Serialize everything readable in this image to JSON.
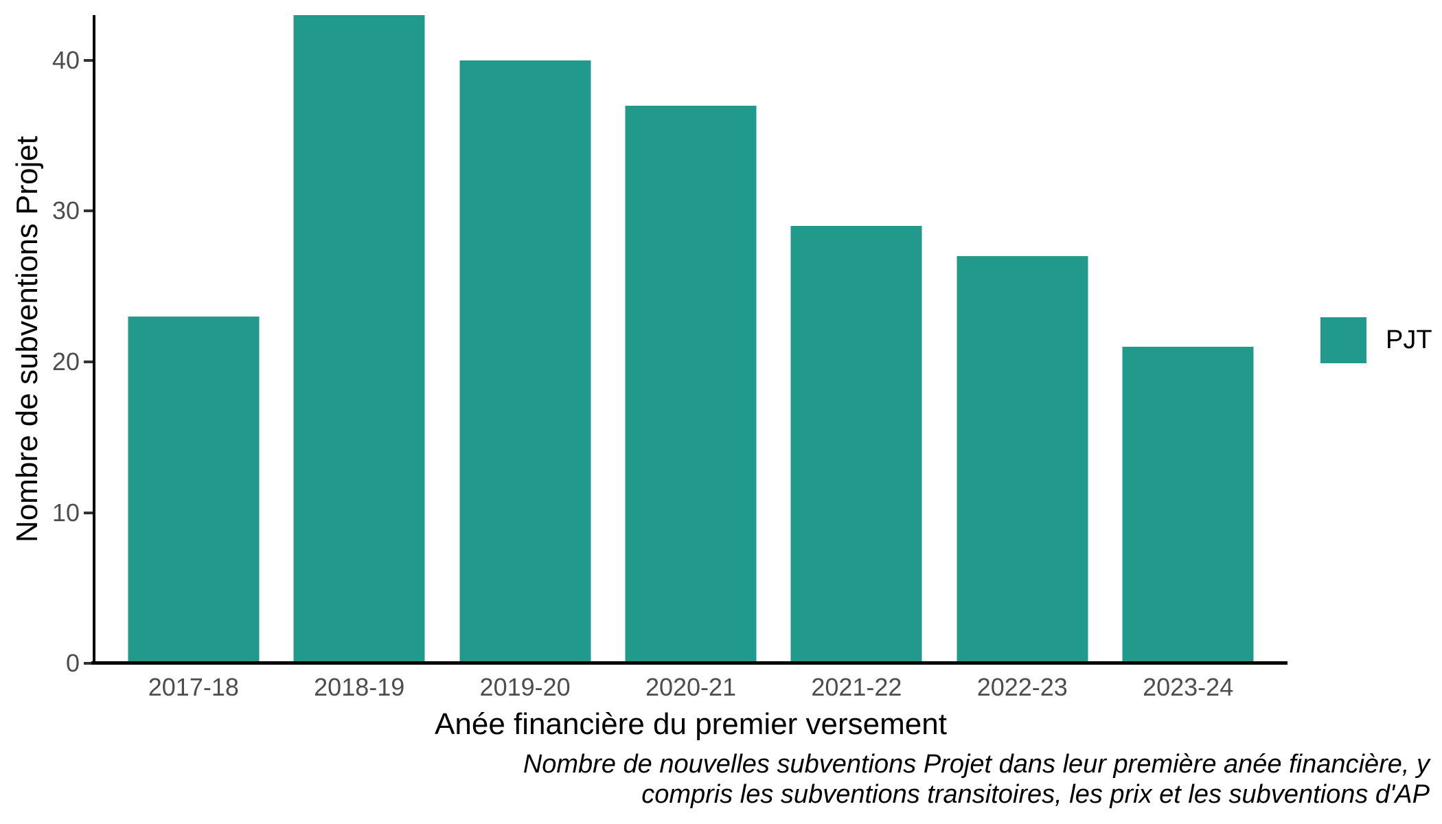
{
  "chart_data": {
    "type": "bar",
    "categories": [
      "2017-18",
      "2018-19",
      "2019-20",
      "2020-21",
      "2021-22",
      "2022-23",
      "2023-24"
    ],
    "values": [
      23,
      43,
      40,
      37,
      29,
      27,
      21
    ],
    "series_name": "PJT",
    "title": "",
    "xlabel": "Anée financière du premier versement",
    "ylabel": "Nombre de subventions Projet",
    "ylim": [
      0,
      43
    ],
    "yticks": [
      0,
      10,
      20,
      30,
      40
    ],
    "grid": false,
    "legend": {
      "position": "right",
      "entries": [
        {
          "label": "PJT",
          "color": "#219a8b"
        }
      ]
    },
    "caption_lines": [
      "Nombre de nouvelles subventions Projet dans leur première anée financière, y",
      "compris les subventions transitoires, les prix et les subventions d'AP"
    ],
    "colors": {
      "bar": "#219a8b",
      "axis_line": "#000000",
      "tick_label": "#4d4d4d",
      "axis_title": "#000000",
      "background": "#ffffff"
    }
  }
}
